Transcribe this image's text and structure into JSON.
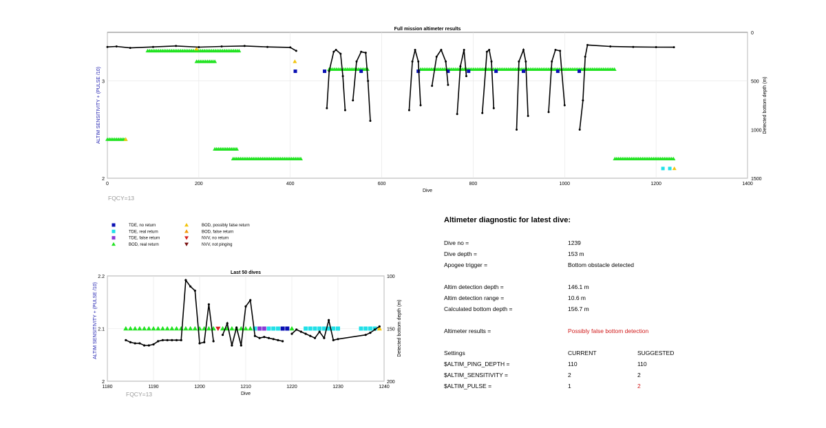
{
  "colors": {
    "tde_no_return": "#0a10b4",
    "tde_real_return": "#22e0e8",
    "tde_false_return": "#8a3ad6",
    "bod_real_return": "#22e322",
    "bod_possibly_false": "#f2c40c",
    "bod_false_return": "#f29a0c",
    "nvv_no_return": "#d72020",
    "nvv_not_pinging": "#7a1010",
    "left_axis_label": "#2020b0",
    "warning_text": "#d01818",
    "fqcy_text": "#9a9a9a"
  },
  "chart_data": [
    {
      "type": "scatter",
      "title": "Full mission altimeter results",
      "xlabel": "Dive",
      "ylabel_left": "ALTIM SENSITIVITY + (PULSE /10)",
      "ylabel_right": "Detected bottom depth (m)",
      "xlim": [
        0,
        1400
      ],
      "ylim_left": [
        2,
        3.5
      ],
      "ylim_right": [
        1500,
        0
      ],
      "right_axis_reversed": true,
      "x_ticks": [
        "0",
        "200",
        "400",
        "600",
        "800",
        "1000",
        "1200",
        "1400"
      ],
      "y_ticks_left": [
        "2",
        "3"
      ],
      "y_ticks_right": [
        "0",
        "500",
        "1000",
        "1500"
      ],
      "grid": true,
      "annotation": "FQCY=13",
      "marker_bands": [
        {
          "category": "bod_real_return",
          "y": 3.31,
          "x_from": 88,
          "x_to": 288
        },
        {
          "category": "bod_real_return",
          "y": 3.12,
          "x_from": 485,
          "x_to": 571
        },
        {
          "category": "bod_real_return",
          "y": 3.12,
          "x_from": 685,
          "x_to": 1112
        },
        {
          "category": "bod_real_return",
          "y": 2.4,
          "x_from": 0,
          "x_to": 40
        },
        {
          "category": "bod_real_return",
          "y": 2.2,
          "x_from": 275,
          "x_to": 425
        },
        {
          "category": "bod_real_return",
          "y": 2.2,
          "x_from": 1110,
          "x_to": 1240
        },
        {
          "category": "bod_real_return",
          "y": 3.2,
          "x_from": 195,
          "x_to": 235
        },
        {
          "category": "bod_real_return",
          "y": 2.3,
          "x_from": 235,
          "x_to": 285
        }
      ],
      "point_markers": [
        {
          "category": "tde_no_return",
          "x": 411,
          "y": 3.1
        },
        {
          "category": "tde_no_return",
          "x": 475,
          "y": 3.1
        },
        {
          "category": "tde_no_return",
          "x": 555,
          "y": 3.1
        },
        {
          "category": "tde_no_return",
          "x": 680,
          "y": 3.1
        },
        {
          "category": "tde_no_return",
          "x": 745,
          "y": 3.1
        },
        {
          "category": "tde_no_return",
          "x": 790,
          "y": 3.1
        },
        {
          "category": "tde_no_return",
          "x": 850,
          "y": 3.1
        },
        {
          "category": "tde_no_return",
          "x": 910,
          "y": 3.1
        },
        {
          "category": "tde_no_return",
          "x": 985,
          "y": 3.1
        },
        {
          "category": "tde_no_return",
          "x": 1032,
          "y": 3.1
        },
        {
          "category": "bod_possibly_false",
          "x": 195,
          "y": 3.33
        },
        {
          "category": "bod_possibly_false",
          "x": 410,
          "y": 3.2
        },
        {
          "category": "bod_possibly_false",
          "x": 40,
          "y": 2.4
        },
        {
          "category": "bod_possibly_false",
          "x": 1240,
          "y": 2.1
        },
        {
          "category": "tde_real_return",
          "x": 1215,
          "y": 2.1
        },
        {
          "category": "tde_real_return",
          "x": 1230,
          "y": 2.1
        }
      ],
      "depth_trace": {
        "segments": [
          [
            [
              0,
              150
            ],
            [
              20,
              145
            ],
            [
              50,
              160
            ],
            [
              100,
              150
            ],
            [
              150,
              140
            ],
            [
              200,
              152
            ],
            [
              250,
              145
            ],
            [
              300,
              140
            ],
            [
              350,
              150
            ],
            [
              400,
              155
            ],
            [
              413,
              190
            ]
          ],
          [
            [
              480,
              780
            ],
            [
              485,
              400
            ],
            [
              495,
              200
            ],
            [
              500,
              180
            ],
            [
              510,
              220
            ],
            [
              515,
              450
            ],
            [
              520,
              800
            ]
          ],
          [
            [
              537,
              700
            ],
            [
              545,
              300
            ],
            [
              555,
              200
            ],
            [
              565,
              210
            ],
            [
              570,
              500
            ],
            [
              575,
              910
            ]
          ],
          [
            [
              660,
              800
            ],
            [
              667,
              300
            ],
            [
              673,
              180
            ],
            [
              680,
              300
            ],
            [
              685,
              750
            ]
          ],
          [
            [
              710,
              550
            ],
            [
              720,
              250
            ],
            [
              730,
              180
            ],
            [
              740,
              300
            ],
            [
              745,
              540
            ]
          ],
          [
            [
              765,
              840
            ],
            [
              772,
              350
            ],
            [
              780,
              180
            ],
            [
              785,
              450
            ]
          ],
          [
            [
              820,
              830
            ],
            [
              830,
              200
            ],
            [
              835,
              180
            ],
            [
              840,
              300
            ],
            [
              845,
              780
            ]
          ],
          [
            [
              895,
              1000
            ],
            [
              900,
              300
            ],
            [
              910,
              180
            ],
            [
              915,
              300
            ],
            [
              920,
              860
            ]
          ],
          [
            [
              965,
              820
            ],
            [
              972,
              300
            ],
            [
              980,
              180
            ],
            [
              990,
              190
            ],
            [
              1000,
              750
            ]
          ],
          [
            [
              1033,
              1000
            ],
            [
              1040,
              700
            ],
            [
              1045,
              250
            ],
            [
              1050,
              130
            ],
            [
              1100,
              145
            ],
            [
              1150,
              150
            ],
            [
              1200,
              152
            ],
            [
              1239,
              153
            ]
          ]
        ]
      }
    },
    {
      "type": "line",
      "title": "Last 50 dives",
      "xlabel": "Dive",
      "ylabel_left": "ALTIM SENSITIVITY + (PULSE /10)",
      "ylabel_right": "Detected bottom depth (m)",
      "xlim": [
        1180,
        1240
      ],
      "ylim_left": [
        2,
        2.2
      ],
      "ylim_right": [
        200,
        100
      ],
      "right_axis_reversed": true,
      "x_ticks": [
        "1180",
        "1190",
        "1200",
        "1210",
        "1220",
        "1230",
        "1240"
      ],
      "y_ticks_left": [
        "2",
        "2.1",
        "2.2"
      ],
      "y_ticks_right": [
        "100",
        "150",
        "200"
      ],
      "grid": true,
      "annotation": "FQCY=13",
      "markers": [
        {
          "category": "bod_real_return",
          "x": [
            1184,
            1185,
            1186,
            1187,
            1188,
            1189,
            1190,
            1191,
            1192,
            1193,
            1194,
            1195,
            1196,
            1197,
            1198,
            1199,
            1200,
            1201,
            1202,
            1203,
            1205,
            1206,
            1207,
            1208,
            1209,
            1210,
            1211,
            1220
          ]
        },
        {
          "category": "nvv_no_return",
          "x": [
            1204
          ]
        },
        {
          "category": "tde_real_return",
          "x": [
            1212,
            1215,
            1216,
            1217,
            1223,
            1224,
            1225,
            1226,
            1227,
            1228,
            1229,
            1230,
            1235,
            1236,
            1237,
            1238
          ]
        },
        {
          "category": "tde_false_return",
          "x": [
            1213,
            1214
          ]
        },
        {
          "category": "tde_no_return",
          "x": [
            1218,
            1219
          ]
        },
        {
          "category": "bod_possibly_false",
          "x": [
            1239
          ]
        }
      ],
      "depth_segments": [
        [
          [
            1184,
            161
          ],
          [
            1185,
            163
          ],
          [
            1186,
            164
          ],
          [
            1187,
            164
          ],
          [
            1188,
            166
          ],
          [
            1189,
            166
          ],
          [
            1190,
            165
          ],
          [
            1191,
            162
          ],
          [
            1192,
            161
          ],
          [
            1193,
            161
          ],
          [
            1194,
            161
          ],
          [
            1195,
            161
          ],
          [
            1196,
            161
          ],
          [
            1197,
            104
          ],
          [
            1198,
            110
          ],
          [
            1199,
            114
          ],
          [
            1200,
            164
          ],
          [
            1201,
            163
          ],
          [
            1202,
            127
          ],
          [
            1203,
            162
          ]
        ],
        [
          [
            1205,
            156
          ],
          [
            1206,
            145
          ],
          [
            1207,
            166
          ],
          [
            1208,
            149
          ],
          [
            1209,
            166
          ],
          [
            1210,
            129
          ],
          [
            1211,
            123
          ],
          [
            1212,
            157
          ],
          [
            1213,
            159
          ],
          [
            1214,
            158
          ],
          [
            1215,
            159
          ],
          [
            1216,
            160
          ],
          [
            1217,
            161
          ],
          [
            1218,
            162
          ]
        ],
        [
          [
            1220,
            155
          ],
          [
            1221,
            151
          ],
          [
            1222,
            153
          ],
          [
            1223,
            155
          ],
          [
            1224,
            157
          ],
          [
            1225,
            159
          ],
          [
            1226,
            153
          ],
          [
            1227,
            159
          ],
          [
            1228,
            142
          ],
          [
            1229,
            161
          ],
          [
            1230,
            160
          ],
          [
            1236,
            156
          ],
          [
            1237,
            154
          ],
          [
            1238,
            151
          ],
          [
            1239,
            148
          ]
        ]
      ]
    }
  ],
  "legend": [
    {
      "label": "TDE, no return",
      "category": "tde_no_return",
      "shape": "square"
    },
    {
      "label": "TDE, real return",
      "category": "tde_real_return",
      "shape": "square"
    },
    {
      "label": "TDE, false return",
      "category": "tde_false_return",
      "shape": "square"
    },
    {
      "label": "BOD, real return",
      "category": "bod_real_return",
      "shape": "triangle-up"
    },
    {
      "label": "BOD, possibly false return",
      "category": "bod_possibly_false",
      "shape": "triangle-up"
    },
    {
      "label": "BOD, false return",
      "category": "bod_false_return",
      "shape": "triangle-up"
    },
    {
      "label": "NVV, no return",
      "category": "nvv_no_return",
      "shape": "triangle-down"
    },
    {
      "label": "NVV, not pinging",
      "category": "nvv_not_pinging",
      "shape": "triangle-down"
    }
  ],
  "diagnostic": {
    "heading": "Altimeter diagnostic for latest dive:",
    "dive_no_label": "Dive no =",
    "dive_no_value": "1239",
    "dive_depth_label": "Dive depth =",
    "dive_depth_value": "153 m",
    "apogee_label": "Apogee trigger =",
    "apogee_value": "Bottom obstacle detected",
    "altim_depth_label": "Altim detection depth =",
    "altim_depth_value": "146.1 m",
    "altim_range_label": "Altim detection range =",
    "altim_range_value": "10.6 m",
    "calc_bottom_label": "Calculated bottom depth =",
    "calc_bottom_value": "156.7 m",
    "results_label": "Altimeter results =",
    "results_value": "Possibly false bottom detection",
    "settings_label": "Settings",
    "current_label": "CURRENT",
    "suggested_label": "SUGGESTED",
    "ping_depth_label": "$ALTIM_PING_DEPTH =",
    "ping_depth_current": "110",
    "ping_depth_suggested": "110",
    "sensitivity_label": "$ALTIM_SENSITIVITY =",
    "sensitivity_current": "2",
    "sensitivity_suggested": "2",
    "pulse_label": "$ALTIM_PULSE =",
    "pulse_current": "1",
    "pulse_suggested": "2"
  }
}
